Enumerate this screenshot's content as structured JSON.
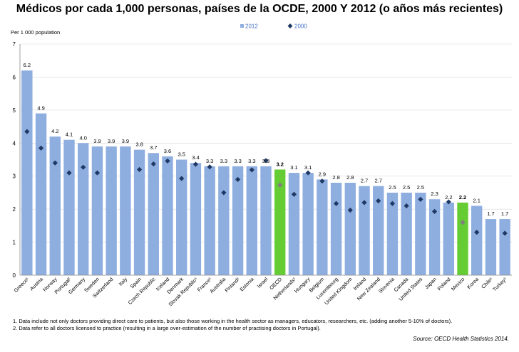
{
  "title": "Médicos por cada 1,000 personas, países de la OCDE, 2000 Y 2012 (o años más recientes)",
  "colors": {
    "bar": "#8eaee0",
    "highlight": "#66cc33",
    "marker": "#1f3864",
    "marker_highlight": "#7f7f7f",
    "grid": "#d9d9d9"
  },
  "chart_data": {
    "type": "bar",
    "ylabel": "Per 1 000 population",
    "ylim": [
      0,
      7
    ],
    "yticks": [
      0,
      1,
      2,
      3,
      4,
      5,
      6,
      7
    ],
    "legend": {
      "placement": "top-center",
      "items": [
        "2012",
        "2000"
      ]
    },
    "categories": [
      "Greece¹",
      "Austria",
      "Norway",
      "Portugal²",
      "Germany",
      "Sweden",
      "Switzerland",
      "Italy",
      "Spain",
      "Czech Republic",
      "Iceland",
      "Denmark",
      "Slovak Republic¹",
      "France¹",
      "Australia",
      "Finland¹",
      "Estonia",
      "Israel",
      "OECD",
      "Netherlands¹",
      "Hungary",
      "Belgium",
      "Luxembourg",
      "United Kingdom",
      "Ireland",
      "New Zealand",
      "Slovenia",
      "Canada",
      "United States",
      "Japan",
      "Poland",
      "Mexico",
      "Korea",
      "Chile¹",
      "Turkey¹"
    ],
    "highlight": [
      "OECD",
      "Mexico"
    ],
    "series": [
      {
        "name": "2012",
        "values": [
          6.2,
          4.9,
          4.2,
          4.1,
          4.0,
          3.9,
          3.9,
          3.9,
          3.8,
          3.7,
          3.6,
          3.5,
          3.4,
          3.3,
          3.3,
          3.3,
          3.3,
          3.3,
          3.2,
          3.1,
          3.1,
          2.9,
          2.8,
          2.8,
          2.7,
          2.7,
          2.5,
          2.5,
          2.5,
          2.3,
          2.2,
          2.2,
          2.1,
          1.7,
          1.7
        ]
      },
      {
        "name": "2000",
        "values": [
          4.35,
          3.85,
          3.4,
          3.1,
          3.27,
          3.1,
          null,
          null,
          3.2,
          3.37,
          3.46,
          2.93,
          3.36,
          3.28,
          2.5,
          2.9,
          3.19,
          3.47,
          2.73,
          2.45,
          3.1,
          2.85,
          2.17,
          1.97,
          2.2,
          2.25,
          2.17,
          2.1,
          2.3,
          1.93,
          2.22,
          1.6,
          1.3,
          null,
          1.27
        ]
      }
    ],
    "bar_labels": [
      "6.2",
      "4.9",
      "4.2",
      "4.1",
      "4.0",
      "3.9",
      "3.9",
      "3.9",
      "3.8",
      "3.7",
      "3.6",
      "3.5",
      "3.4",
      "3.3",
      "3.3",
      "3.3",
      "3.3",
      "3.3",
      "3.2",
      "3.1",
      "3.1",
      "2.9",
      "2.8",
      "2.8",
      "2.7",
      "2.7",
      "2.5",
      "2.5",
      "2.5",
      "2.3",
      "2.2",
      "2.2",
      "2.1",
      "1.7",
      "1.7"
    ]
  },
  "notes": [
    "1. Data include not only doctors providing direct care to patients, but also those working in the health sector as managers, educators, researchers, etc. (adding another 5-10% of doctors).",
    "2. Data refer to all doctors licensed to practice (resulting in a large over-estimation of the number of practising doctors in Portugal)."
  ],
  "source": "Source: OECD Health Statistics 2014."
}
